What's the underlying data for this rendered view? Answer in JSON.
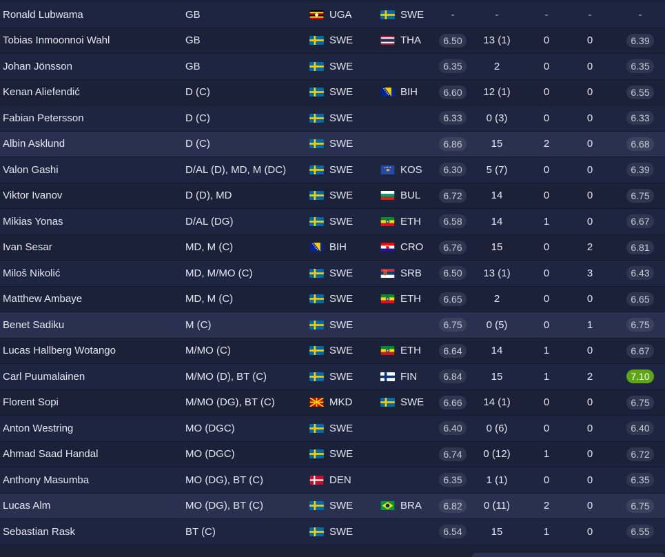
{
  "players": [
    {
      "name": "Ronald Lubwama",
      "pos": "GB",
      "nat": {
        "code": "UGA",
        "flag": "uga-flag"
      },
      "nat2": {
        "code": "SWE",
        "flag": "swe-flag"
      },
      "rating": "-",
      "apps": "-",
      "goals": "-",
      "assists": "-",
      "avg": "-"
    },
    {
      "name": "Tobias Inmoonnoi Wahl",
      "pos": "GB",
      "nat": {
        "code": "SWE",
        "flag": "swe-flag"
      },
      "nat2": {
        "code": "THA",
        "flag": "tha-flag"
      },
      "rating": "6.50",
      "apps": "13 (1)",
      "goals": "0",
      "assists": "0",
      "avg": "6.39"
    },
    {
      "name": "Johan Jönsson",
      "pos": "GB",
      "nat": {
        "code": "SWE",
        "flag": "swe-flag"
      },
      "nat2": {
        "code": "",
        "flag": ""
      },
      "rating": "6.35",
      "apps": "2",
      "goals": "0",
      "assists": "0",
      "avg": "6.35"
    },
    {
      "name": "Kenan Aliefendić",
      "pos": "D (C)",
      "nat": {
        "code": "SWE",
        "flag": "swe-flag"
      },
      "nat2": {
        "code": "BIH",
        "flag": "bih-flag"
      },
      "rating": "6.60",
      "apps": "12 (1)",
      "goals": "0",
      "assists": "0",
      "avg": "6.55"
    },
    {
      "name": "Fabian Petersson",
      "pos": "D (C)",
      "nat": {
        "code": "SWE",
        "flag": "swe-flag"
      },
      "nat2": {
        "code": "",
        "flag": ""
      },
      "rating": "6.33",
      "apps": "0 (3)",
      "goals": "0",
      "assists": "0",
      "avg": "6.33"
    },
    {
      "name": "Albin Asklund",
      "pos": "D (C)",
      "nat": {
        "code": "SWE",
        "flag": "swe-flag"
      },
      "nat2": {
        "code": "",
        "flag": ""
      },
      "rating": "6.86",
      "apps": "15",
      "goals": "2",
      "assists": "0",
      "avg": "6.68"
    },
    {
      "name": "Valon Gashi",
      "pos": "D/AL (D), MD, M (DC)",
      "nat": {
        "code": "SWE",
        "flag": "swe-flag"
      },
      "nat2": {
        "code": "KOS",
        "flag": "kos-flag"
      },
      "rating": "6.30",
      "apps": "5 (7)",
      "goals": "0",
      "assists": "0",
      "avg": "6.39"
    },
    {
      "name": "Viktor Ivanov",
      "pos": "D (D), MD",
      "nat": {
        "code": "SWE",
        "flag": "swe-flag"
      },
      "nat2": {
        "code": "BUL",
        "flag": "bul-flag"
      },
      "rating": "6.72",
      "apps": "14",
      "goals": "0",
      "assists": "0",
      "avg": "6.75"
    },
    {
      "name": "Mikias Yonas",
      "pos": "D/AL (DG)",
      "nat": {
        "code": "SWE",
        "flag": "swe-flag"
      },
      "nat2": {
        "code": "ETH",
        "flag": "eth-flag"
      },
      "rating": "6.58",
      "apps": "14",
      "goals": "1",
      "assists": "0",
      "avg": "6.67"
    },
    {
      "name": "Ivan Sesar",
      "pos": "MD, M (C)",
      "nat": {
        "code": "BIH",
        "flag": "bih-flag"
      },
      "nat2": {
        "code": "CRO",
        "flag": "cro-flag"
      },
      "rating": "6.76",
      "apps": "15",
      "goals": "0",
      "assists": "2",
      "avg": "6.81"
    },
    {
      "name": "Miloš Nikolić",
      "pos": "MD, M/MO (C)",
      "nat": {
        "code": "SWE",
        "flag": "swe-flag"
      },
      "nat2": {
        "code": "SRB",
        "flag": "srb-flag"
      },
      "rating": "6.50",
      "apps": "13 (1)",
      "goals": "0",
      "assists": "3",
      "avg": "6.43"
    },
    {
      "name": "Matthew Ambaye",
      "pos": "MD, M (C)",
      "nat": {
        "code": "SWE",
        "flag": "swe-flag"
      },
      "nat2": {
        "code": "ETH",
        "flag": "eth-flag"
      },
      "rating": "6.65",
      "apps": "2",
      "goals": "0",
      "assists": "0",
      "avg": "6.65"
    },
    {
      "name": "Benet Sadiku",
      "pos": "M (C)",
      "nat": {
        "code": "SWE",
        "flag": "swe-flag"
      },
      "nat2": {
        "code": "",
        "flag": ""
      },
      "rating": "6.75",
      "apps": "0 (5)",
      "goals": "0",
      "assists": "1",
      "avg": "6.75"
    },
    {
      "name": "Lucas Hallberg Wotango",
      "pos": "M/MO (C)",
      "nat": {
        "code": "SWE",
        "flag": "swe-flag"
      },
      "nat2": {
        "code": "ETH",
        "flag": "eth-flag"
      },
      "rating": "6.64",
      "apps": "14",
      "goals": "1",
      "assists": "0",
      "avg": "6.67"
    },
    {
      "name": "Carl Puumalainen",
      "pos": "M/MO (D), BT (C)",
      "nat": {
        "code": "SWE",
        "flag": "swe-flag"
      },
      "nat2": {
        "code": "FIN",
        "flag": "fin-flag"
      },
      "rating": "6.84",
      "apps": "15",
      "goals": "1",
      "assists": "2",
      "avg": "7.10"
    },
    {
      "name": "Florent Sopi",
      "pos": "M/MO (DG), BT (C)",
      "nat": {
        "code": "MKD",
        "flag": "mkd-flag"
      },
      "nat2": {
        "code": "SWE",
        "flag": "swe-flag"
      },
      "rating": "6.66",
      "apps": "14 (1)",
      "goals": "0",
      "assists": "0",
      "avg": "6.75"
    },
    {
      "name": "Anton Westring",
      "pos": "MO (DGC)",
      "nat": {
        "code": "SWE",
        "flag": "swe-flag"
      },
      "nat2": {
        "code": "",
        "flag": ""
      },
      "rating": "6.40",
      "apps": "0 (6)",
      "goals": "0",
      "assists": "0",
      "avg": "6.40"
    },
    {
      "name": "Ahmad Saad Handal",
      "pos": "MO (DGC)",
      "nat": {
        "code": "SWE",
        "flag": "swe-flag"
      },
      "nat2": {
        "code": "",
        "flag": ""
      },
      "rating": "6.74",
      "apps": "0 (12)",
      "goals": "1",
      "assists": "0",
      "avg": "6.72"
    },
    {
      "name": "Anthony Masumba",
      "pos": "MO (DG), BT (C)",
      "nat": {
        "code": "DEN",
        "flag": "den-flag"
      },
      "nat2": {
        "code": "",
        "flag": ""
      },
      "rating": "6.35",
      "apps": "1 (1)",
      "goals": "0",
      "assists": "0",
      "avg": "6.35"
    },
    {
      "name": "Lucas Alm",
      "pos": "MO (DG), BT (C)",
      "nat": {
        "code": "SWE",
        "flag": "swe-flag"
      },
      "nat2": {
        "code": "BRA",
        "flag": "bra-flag"
      },
      "rating": "6.82",
      "apps": "0 (11)",
      "goals": "2",
      "assists": "0",
      "avg": "6.75"
    },
    {
      "name": "Sebastian Rask",
      "pos": "BT (C)",
      "nat": {
        "code": "SWE",
        "flag": "swe-flag"
      },
      "nat2": {
        "code": "",
        "flag": ""
      },
      "rating": "6.54",
      "apps": "15",
      "goals": "1",
      "assists": "0",
      "avg": "6.55"
    }
  ],
  "colors": {
    "best_avg": "#5ea518",
    "row_highlight": "#2a3150"
  }
}
